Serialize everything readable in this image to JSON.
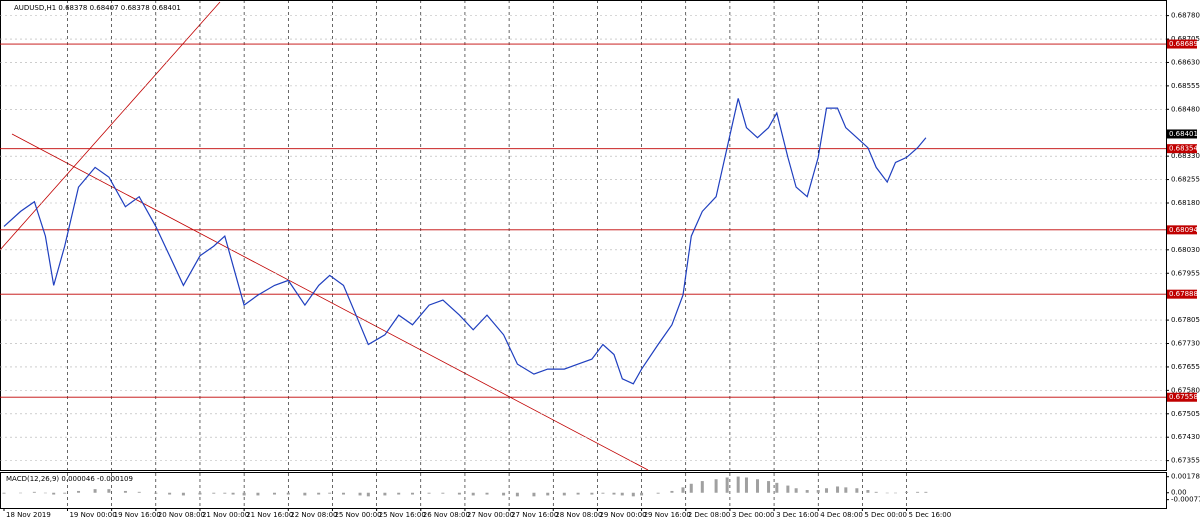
{
  "chart_data": {
    "type": "price-line",
    "title": "AUDUSD,H1  0.68378 0.68407 0.68378 0.68401",
    "color": "#1f3fbf",
    "level_color": "#c00000",
    "x": [
      0,
      6,
      11,
      15,
      18,
      22,
      27,
      33,
      38,
      44,
      49,
      55,
      60,
      65,
      71,
      76,
      80,
      83,
      87,
      92,
      98,
      103,
      109,
      114,
      118,
      123,
      129,
      132,
      138,
      143,
      148,
      154,
      159,
      165,
      170,
      175,
      181,
      186,
      192,
      197,
      203,
      208,
      213,
      217,
      221,
      224,
      228,
      231,
      237,
      242,
      246,
      249,
      253,
      258,
      262,
      266,
      269,
      273,
      277,
      280,
      284,
      287,
      291,
      295,
      298,
      302,
      305,
      309,
      313,
      316,
      320,
      323,
      327,
      331,
      334
    ],
    "values": [
      0.68105,
      0.68153,
      0.68184,
      0.68074,
      0.67916,
      0.68042,
      0.68231,
      0.68294,
      0.68263,
      0.68168,
      0.682,
      0.68105,
      0.68011,
      0.67916,
      0.68011,
      0.68042,
      0.68074,
      0.67979,
      0.67853,
      0.67885,
      0.67916,
      0.67932,
      0.67853,
      0.67916,
      0.67948,
      0.67916,
      0.6779,
      0.67727,
      0.67758,
      0.67821,
      0.6779,
      0.67853,
      0.67869,
      0.67821,
      0.67774,
      0.67821,
      0.67758,
      0.67664,
      0.67632,
      0.67648,
      0.67648,
      0.67664,
      0.6768,
      0.67727,
      0.67695,
      0.67617,
      0.67601,
      0.67648,
      0.67727,
      0.6779,
      0.67885,
      0.68074,
      0.68153,
      0.682,
      0.68357,
      0.68515,
      0.68421,
      0.68389,
      0.68421,
      0.68468,
      0.68326,
      0.68231,
      0.682,
      0.68326,
      0.68484,
      0.68484,
      0.68421,
      0.68389,
      0.68357,
      0.68294,
      0.68247,
      0.6831,
      0.68326,
      0.68357,
      0.68389
    ],
    "levels": [
      0.68689,
      0.68354,
      0.68094,
      0.67888,
      0.67558
    ],
    "current_price": 0.68401,
    "xlim": [
      0,
      421
    ],
    "ylim": [
      0.67325,
      0.6883
    ],
    "xticks": [
      {
        "value": 0,
        "label": "18 Nov 2019"
      },
      {
        "value": 23,
        "label": "19 Nov 00:00"
      },
      {
        "value": 39,
        "label": "19 Nov 16:00"
      },
      {
        "value": 55,
        "label": "20 Nov 08:00"
      },
      {
        "value": 71,
        "label": "21 Nov 00:00"
      },
      {
        "value": 87,
        "label": "21 Nov 16:00"
      },
      {
        "value": 103,
        "label": "22 Nov 08:00"
      },
      {
        "value": 119,
        "label": "25 Nov 00:00"
      },
      {
        "value": 135,
        "label": "25 Nov 16:00"
      },
      {
        "value": 151,
        "label": "26 Nov 08:00"
      },
      {
        "value": 167,
        "label": "27 Nov 00:00"
      },
      {
        "value": 183,
        "label": "27 Nov 16:00"
      },
      {
        "value": 199,
        "label": "28 Nov 08:00"
      },
      {
        "value": 215,
        "label": "29 Nov 00:00"
      },
      {
        "value": 231,
        "label": "29 Nov 16:00"
      },
      {
        "value": 247,
        "label": "2 Dec 08:00"
      },
      {
        "value": 263,
        "label": "3 Dec 00:00"
      },
      {
        "value": 279,
        "label": "3 Dec 16:00"
      },
      {
        "value": 295,
        "label": "4 Dec 08:00"
      },
      {
        "value": 311,
        "label": "5 Dec 00:00"
      },
      {
        "value": 327,
        "label": "5 Dec 16:00"
      }
    ],
    "yticks": [
      {
        "value": 0.6878,
        "label": "0.68780"
      },
      {
        "value": 0.68705,
        "label": "0.68705"
      },
      {
        "value": 0.6863,
        "label": "0.68630"
      },
      {
        "value": 0.68555,
        "label": "0.68555"
      },
      {
        "value": 0.6848,
        "label": "0.68480"
      },
      {
        "value": 0.6833,
        "label": "0.68330"
      },
      {
        "value": 0.68255,
        "label": "0.68255"
      },
      {
        "value": 0.6818,
        "label": "0.68180"
      },
      {
        "value": 0.6803,
        "label": "0.68030"
      },
      {
        "value": 0.67955,
        "label": "0.67955"
      },
      {
        "value": 0.67805,
        "label": "0.67805"
      },
      {
        "value": 0.6773,
        "label": "0.67730"
      },
      {
        "value": 0.67655,
        "label": "0.67655"
      },
      {
        "value": 0.6758,
        "label": "0.67580"
      },
      {
        "value": 0.67505,
        "label": "0.67505"
      },
      {
        "value": 0.6743,
        "label": "0.67430"
      },
      {
        "value": 0.67355,
        "label": "0.67355"
      }
    ],
    "grid": true,
    "macd": {
      "title": "MACD(12,26,9) 0.000046 -0.000109",
      "color": "#a0a0a0",
      "values": [
        -0.0001,
        0,
        0.0001,
        0,
        -0.0002,
        -0.0001,
        0.0002,
        0.0004,
        0.0004,
        0.0002,
        0.0001,
        -0.0001,
        -0.0002,
        -0.0003,
        -0.0002,
        -0.0001,
        -0.0001,
        -0.0002,
        -0.0003,
        -0.0003,
        -0.0002,
        -0.0002,
        -0.0003,
        -0.0002,
        -0.0001,
        -0.0002,
        -0.0003,
        -0.0004,
        -0.0003,
        -0.0002,
        -0.0002,
        -0.0001,
        -0.0001,
        -0.0002,
        -0.0003,
        -0.0002,
        -0.0003,
        -0.0004,
        -0.0004,
        -0.0003,
        -0.0003,
        -0.0002,
        -0.0002,
        -0.0001,
        -0.0002,
        -0.0003,
        -0.0004,
        -0.0003,
        -0.0001,
        0.0002,
        0.0006,
        0.001,
        0.0013,
        0.0015,
        0.0017,
        0.0018,
        0.0017,
        0.0015,
        0.0013,
        0.0011,
        0.0008,
        0.0005,
        0.0003,
        0.0003,
        0.0005,
        0.0007,
        0.0006,
        0.0005,
        0.0003,
        0.0001,
        0,
        0,
        0.0001,
        0.0001,
        0.0001
      ],
      "ylim": [
        -0.0017,
        0.0022
      ],
      "yticks": [
        0.001785,
        {
          "value": 0,
          "label": "0.00"
        },
        -0.00077
      ]
    }
  }
}
